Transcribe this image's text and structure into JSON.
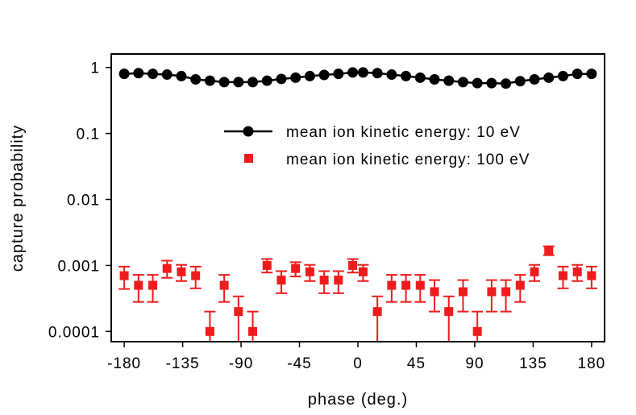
{
  "chart_data": {
    "type": "scatter",
    "title": "",
    "xlabel": "phase (deg.)",
    "ylabel": "capture probability",
    "xlim": [
      -190,
      190
    ],
    "ylim": [
      7e-05,
      1.6
    ],
    "yscale": "log",
    "grid": false,
    "legend_position": "upper-right",
    "x_ticks": [
      -180,
      -135,
      -90,
      -45,
      0,
      45,
      90,
      135,
      180
    ],
    "y_ticks": [
      0.0001,
      0.001,
      0.01,
      0.1,
      1
    ],
    "y_tick_labels": [
      "0.0001",
      "0.001",
      "0.01",
      "0.1",
      "1"
    ],
    "series": [
      {
        "name": "mean ion kinetic energy: 10 eV",
        "color": "#000000",
        "marker": "circle",
        "line": true,
        "x": [
          -180,
          -169,
          -158,
          -147,
          -136,
          -125,
          -114,
          -103,
          -92,
          -81,
          -70,
          -59,
          -48,
          -37,
          -26,
          -15,
          -4,
          4,
          15,
          26,
          37,
          48,
          59,
          70,
          81,
          92,
          103,
          114,
          125,
          136,
          147,
          158,
          169,
          180
        ],
        "y": [
          0.8,
          0.82,
          0.8,
          0.78,
          0.74,
          0.66,
          0.63,
          0.6,
          0.6,
          0.6,
          0.63,
          0.67,
          0.7,
          0.74,
          0.77,
          0.8,
          0.84,
          0.84,
          0.82,
          0.78,
          0.74,
          0.7,
          0.66,
          0.63,
          0.6,
          0.58,
          0.58,
          0.57,
          0.62,
          0.66,
          0.7,
          0.74,
          0.8,
          0.8
        ]
      },
      {
        "name": "mean ion kinetic energy: 100 eV",
        "color": "#ee1c1c",
        "marker": "square",
        "line": false,
        "x": [
          -180,
          -169,
          -158,
          -147,
          -136,
          -125,
          -114,
          -103,
          -92,
          -81,
          -70,
          -59,
          -48,
          -37,
          -26,
          -15,
          -4,
          4,
          15,
          26,
          37,
          48,
          59,
          70,
          81,
          92,
          103,
          114,
          125,
          136,
          147,
          158,
          169,
          180
        ],
        "y": [
          0.0007,
          0.0005,
          0.0005,
          0.0009,
          0.0008,
          0.0007,
          0.0001,
          0.0005,
          0.0002,
          0.0001,
          0.001,
          0.0006,
          0.0009,
          0.0008,
          0.0006,
          0.0006,
          0.001,
          0.0008,
          0.0002,
          0.0005,
          0.0005,
          0.0005,
          0.0004,
          0.0002,
          0.0004,
          0.0001,
          0.0004,
          0.0004,
          0.0005,
          0.0008,
          0.0017,
          0.0007,
          0.0008,
          0.0007
        ],
        "y_low": [
          0.00044,
          0.00028,
          0.00028,
          0.00065,
          0.00058,
          0.00045,
          2e-05,
          0.00028,
          2e-05,
          2e-05,
          0.00078,
          0.00038,
          0.00068,
          0.00058,
          0.00038,
          0.00038,
          0.00078,
          0.00058,
          2e-05,
          0.00028,
          0.00028,
          0.00028,
          0.0002,
          2e-05,
          0.0002,
          2e-05,
          0.0002,
          0.0002,
          0.00028,
          0.00058,
          0.00143,
          0.00045,
          0.00058,
          0.00045
        ],
        "y_high": [
          0.00096,
          0.00072,
          0.00072,
          0.00118,
          0.00102,
          0.00096,
          0.0002,
          0.00072,
          0.00034,
          0.0002,
          0.00125,
          0.00082,
          0.00112,
          0.00102,
          0.00082,
          0.00082,
          0.00125,
          0.00102,
          0.00034,
          0.00072,
          0.00072,
          0.00072,
          0.0006,
          0.00034,
          0.0006,
          0.0002,
          0.0006,
          0.0006,
          0.00072,
          0.00102,
          0.00195,
          0.00096,
          0.00102,
          0.00096
        ]
      }
    ]
  }
}
